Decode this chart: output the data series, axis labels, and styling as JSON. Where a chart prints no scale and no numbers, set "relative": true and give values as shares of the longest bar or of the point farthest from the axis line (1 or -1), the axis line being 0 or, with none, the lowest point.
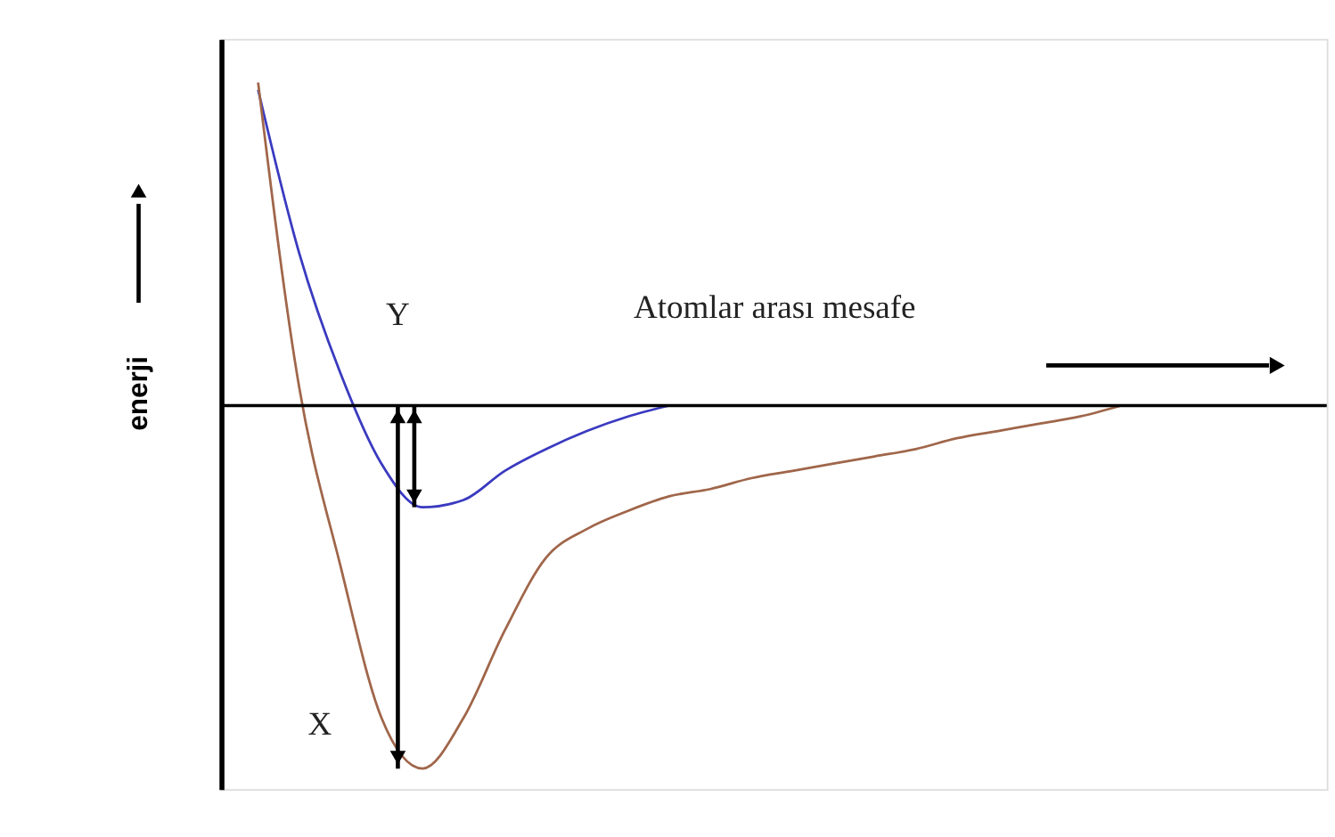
{
  "chart_data": {
    "type": "line",
    "relative": true,
    "xlabel": "Atomlar arası mesafe",
    "ylabel": "enerji",
    "annotations": [
      "Y",
      "X"
    ],
    "categories": [
      null,
      null,
      null,
      null,
      null,
      null,
      null,
      null,
      null,
      null,
      null,
      null,
      null,
      null,
      null,
      null,
      null,
      null,
      null,
      null,
      null,
      null
    ],
    "series": [
      {
        "color": "#3a3ac0",
        "values": [
          0.87,
          0.42,
          0.09,
          -0.16,
          -0.28,
          -0.26,
          -0.18,
          -0.12,
          -0.07,
          -0.03,
          0,
          null,
          null,
          null,
          null,
          null,
          null,
          null,
          null,
          null,
          null,
          null
        ]
      },
      {
        "color": "#a0664a",
        "values": [
          0.89,
          0.05,
          -0.44,
          -0.86,
          -1,
          -0.86,
          -0.62,
          -0.42,
          -0.34,
          -0.29,
          -0.25,
          -0.23,
          -0.2,
          -0.18,
          -0.16,
          -0.14,
          -0.12,
          -0.09,
          -0.07,
          -0.05,
          -0.03,
          0
        ]
      }
    ],
    "legend": false,
    "grid": false,
    "marker": "none",
    "line_style": "solid",
    "tick_labels": false
  }
}
